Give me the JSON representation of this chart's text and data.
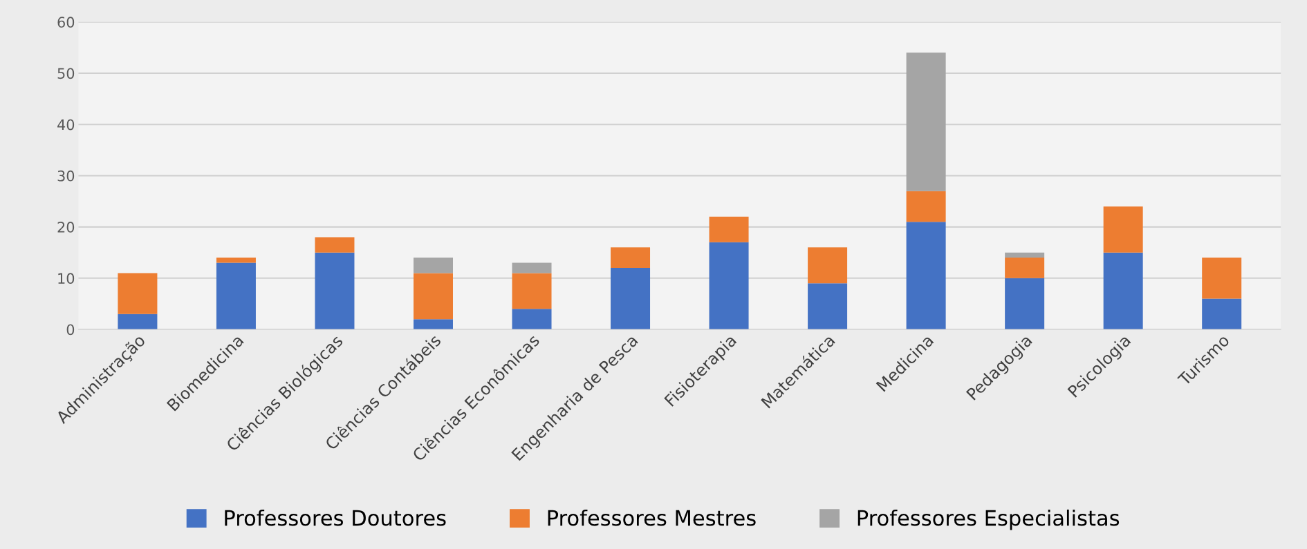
{
  "chart_data": {
    "type": "bar",
    "stacked": true,
    "categories": [
      "Administração",
      "Biomedicina",
      "Ciências Biológicas",
      "Ciências Contábeis",
      "Ciências Econômicas",
      "Engenharia de Pesca",
      "Fisioterapia",
      "Matemática",
      "Medicina",
      "Pedagogia",
      "Psicologia",
      "Turismo"
    ],
    "series": [
      {
        "name": "Professores Doutores",
        "color": "#4472c4",
        "values": [
          3,
          13,
          15,
          2,
          4,
          12,
          17,
          9,
          21,
          10,
          15,
          6
        ]
      },
      {
        "name": "Professores Mestres",
        "color": "#ed7d31",
        "values": [
          8,
          1,
          3,
          9,
          7,
          4,
          5,
          7,
          6,
          4,
          9,
          8
        ]
      },
      {
        "name": "Professores Especialistas",
        "color": "#a5a5a5",
        "values": [
          0,
          0,
          0,
          3,
          2,
          0,
          0,
          0,
          27,
          1,
          0,
          0
        ]
      }
    ],
    "ylim": [
      0,
      60
    ],
    "yticks": [
      0,
      10,
      20,
      30,
      40,
      50,
      60
    ],
    "grid": "y",
    "legend": "bottom"
  }
}
